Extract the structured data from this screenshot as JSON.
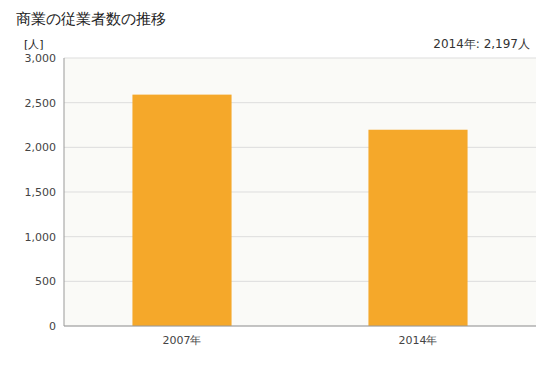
{
  "chart_data": {
    "type": "bar",
    "title": "商業の従業者数の推移",
    "ylabel": "[人]",
    "categories": [
      "2007年",
      "2014年"
    ],
    "values": [
      2590,
      2197
    ],
    "color": "#F5A82A",
    "ylim": [
      0,
      3000
    ],
    "yticks": [
      0,
      500,
      {
        "value": 1000,
        "label": "1,000"
      },
      {
        "value": 1500,
        "label": "1,500"
      },
      {
        "value": 2000,
        "label": "2,000"
      },
      {
        "value": 2500,
        "label": "2,500"
      },
      {
        "value": 3000,
        "label": "3,000"
      }
    ],
    "annotations": [
      "2014年: 2,197人"
    ],
    "grid": true
  }
}
